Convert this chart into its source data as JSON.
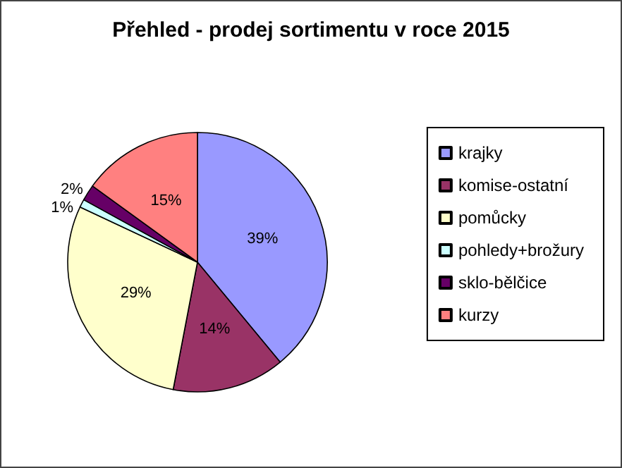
{
  "chart_data": {
    "type": "pie",
    "title": "Přehled - prodej sortimentu v roce 2015",
    "categories": [
      "krajky",
      "komise-ostatní",
      "pomůcky",
      "pohledy+brožury",
      "sklo-bělčice",
      "kurzy"
    ],
    "values": [
      39,
      14,
      29,
      1,
      2,
      15
    ],
    "colors": [
      "#9999ff",
      "#993366",
      "#ffffcc",
      "#ccffff",
      "#660066",
      "#ff8080"
    ],
    "value_labels": [
      "39%",
      "14%",
      "29%",
      "1%",
      "2%",
      "15%"
    ],
    "legend": "right"
  }
}
